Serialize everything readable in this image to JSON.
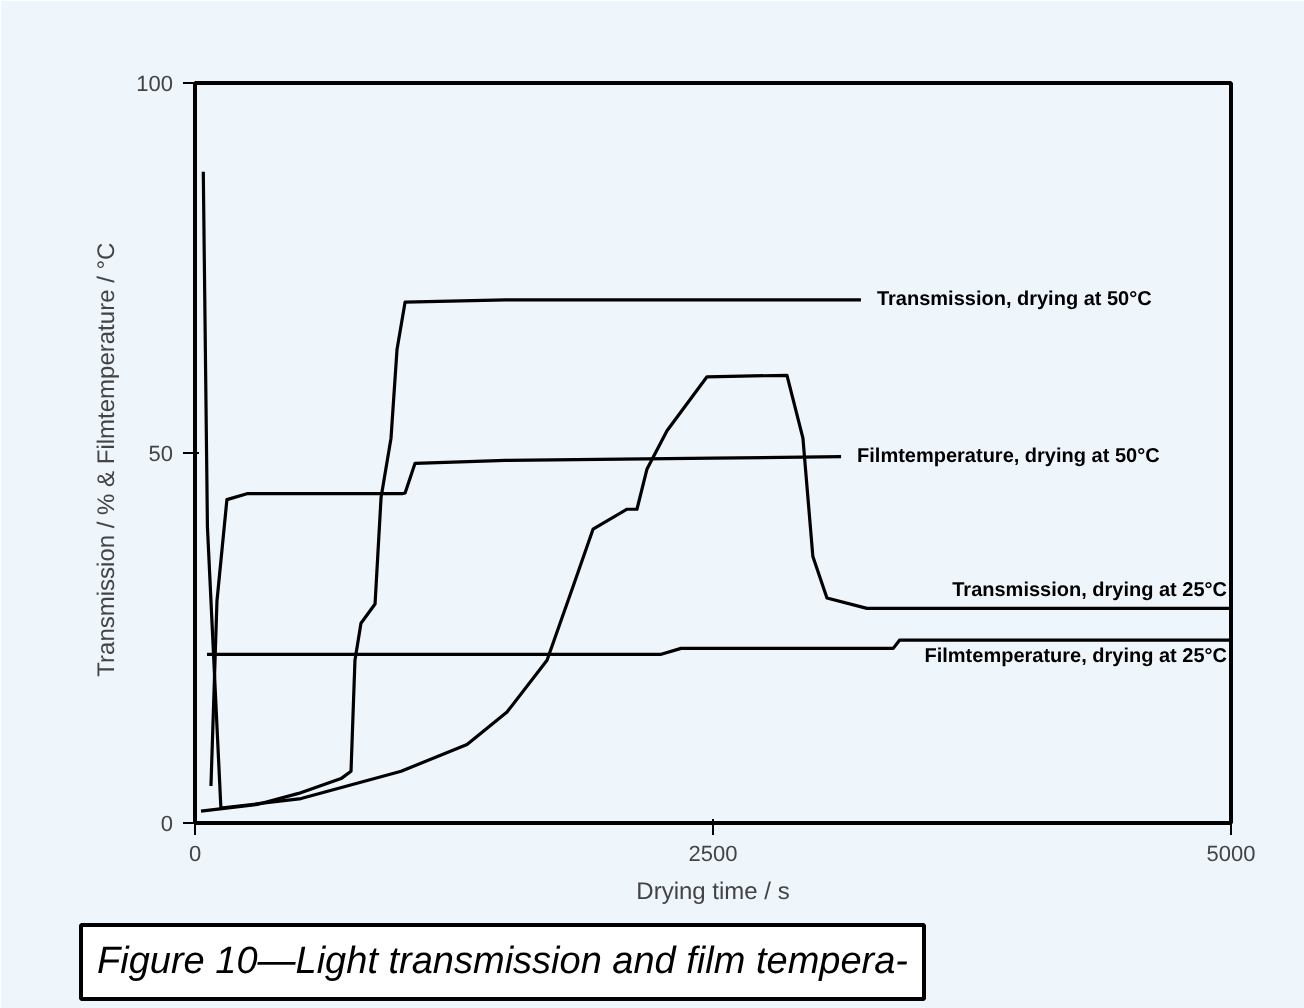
{
  "chart_data": {
    "type": "line",
    "xlabel": "Drying time / s",
    "ylabel": "Transmission / %  &  Filmtemperature / °C",
    "xlim": [
      0,
      5000
    ],
    "ylim": [
      0,
      100
    ],
    "xticks": [
      0,
      2500,
      5000
    ],
    "yticks": [
      0,
      50,
      100
    ],
    "grid": false,
    "marker": "none",
    "line_style": "solid",
    "annotations": [
      "Figure 10—Light transmission and film tempera-"
    ],
    "series": [
      {
        "name": "Transmission, drying at 50°C",
        "color": "#000000",
        "x": [
          29,
          300,
          500,
          705,
          753,
          772,
          801,
          869,
          898,
          946,
          975,
          1014,
          1500,
          2500,
          3214
        ],
        "values": [
          1.6,
          2.5,
          4,
          6,
          7,
          22,
          27,
          29.6,
          44,
          52,
          64,
          70.4,
          70.7,
          70.7,
          70.7
        ]
      },
      {
        "name": "Filmtemperature, drying at 50°C",
        "color": "#000000",
        "x": [
          77,
          106,
          154,
          251,
          1000,
          1014,
          1062,
          1500,
          2500,
          3118
        ],
        "values": [
          5,
          30,
          43.7,
          44.5,
          44.5,
          44.6,
          48.6,
          49,
          49.3,
          49.5
        ]
      },
      {
        "name": "Transmission, drying at 25°C",
        "color": "#000000",
        "x": [
          40,
          60,
          125,
          512,
          995,
          1313,
          1506,
          1699,
          1825,
          1921,
          2085,
          2133,
          2181,
          2278,
          2471,
          2857,
          2934,
          2982,
          3050,
          3243,
          5000
        ],
        "values": [
          88,
          40,
          2,
          3.3,
          7,
          10.6,
          15,
          22,
          32,
          39.7,
          42.4,
          42.4,
          47.8,
          53,
          60.3,
          60.5,
          52,
          36,
          30.4,
          29,
          29
        ]
      },
      {
        "name": "Filmtemperature, drying at 25°C",
        "color": "#000000",
        "x": [
          58,
          2250,
          2346,
          3370,
          3400,
          5000
        ],
        "values": [
          22.8,
          22.8,
          23.6,
          23.6,
          24.7,
          24.7
        ]
      }
    ]
  }
}
